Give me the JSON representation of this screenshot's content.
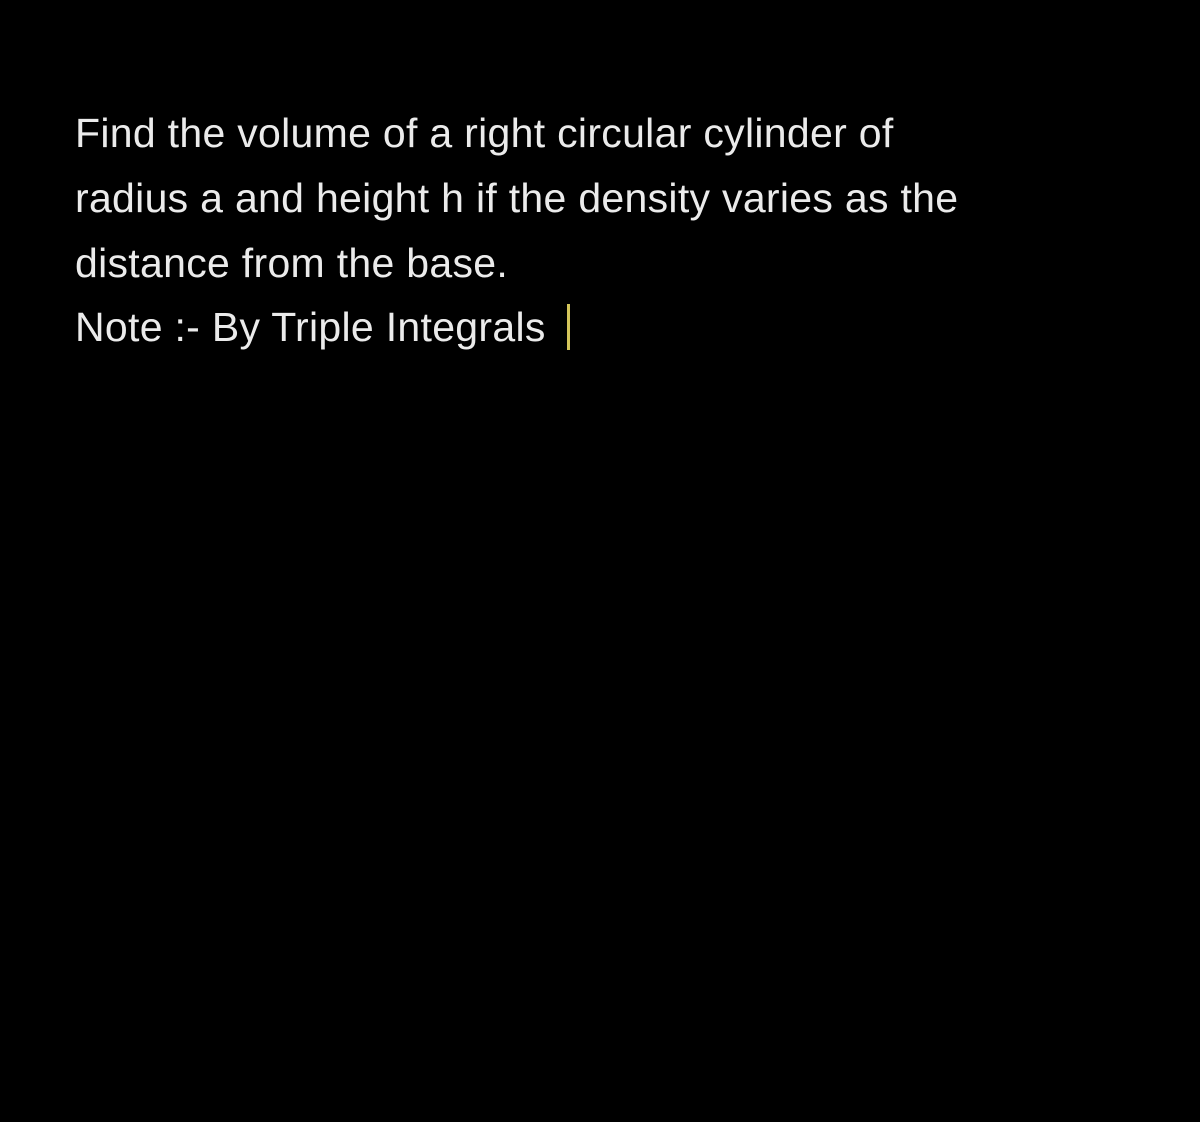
{
  "document": {
    "background_color": "#000000",
    "text_color": "#ebebeb",
    "cursor_color": "#d4c55a",
    "font_size": 41,
    "line_height": 1.58,
    "lines": [
      "Find the volume of a right circular cylinder of",
      "radius a and height h if the density varies as the",
      "distance from the base.",
      "Note :- By Triple Integrals "
    ]
  }
}
